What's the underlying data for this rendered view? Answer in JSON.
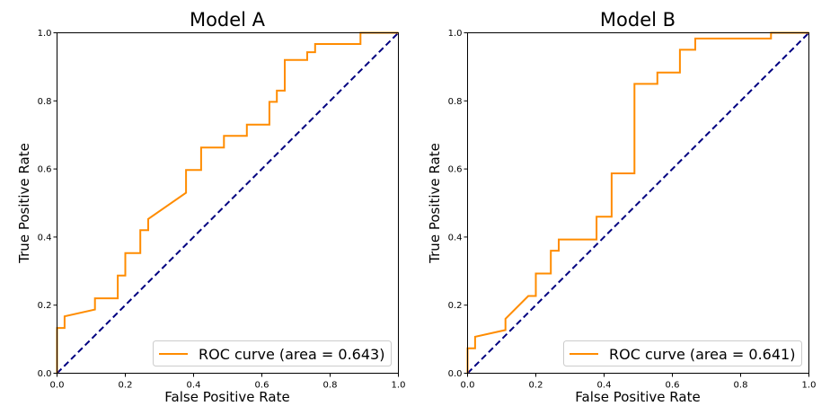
{
  "figure": {
    "background": "#ffffff"
  },
  "chart_data": [
    {
      "type": "line",
      "title": "Model A",
      "xlabel": "False Positive Rate",
      "ylabel": "True Positive Rate",
      "xlim": [
        0.0,
        1.0
      ],
      "ylim": [
        0.0,
        1.0
      ],
      "xticks": [
        "0.0",
        "0.2",
        "0.4",
        "0.6",
        "0.8",
        "1.0"
      ],
      "yticks": [
        "0.0",
        "0.2",
        "0.4",
        "0.6",
        "0.8",
        "1.0"
      ],
      "grid": false,
      "legend_position": "lower right",
      "series": [
        {
          "name": "ROC curve (area = 0.643)",
          "color": "#ff8c00",
          "style": "solid",
          "x": [
            0.0,
            0.0,
            0.022,
            0.022,
            0.111,
            0.111,
            0.178,
            0.178,
            0.2,
            0.2,
            0.244,
            0.244,
            0.267,
            0.267,
            0.378,
            0.378,
            0.422,
            0.422,
            0.489,
            0.489,
            0.556,
            0.556,
            0.622,
            0.622,
            0.644,
            0.644,
            0.667,
            0.667,
            0.733,
            0.733,
            0.756,
            0.756,
            0.889,
            0.889,
            1.0
          ],
          "y": [
            0.0,
            0.133,
            0.133,
            0.167,
            0.187,
            0.22,
            0.22,
            0.287,
            0.287,
            0.353,
            0.353,
            0.42,
            0.42,
            0.453,
            0.53,
            0.597,
            0.597,
            0.663,
            0.663,
            0.697,
            0.697,
            0.73,
            0.73,
            0.797,
            0.797,
            0.83,
            0.83,
            0.92,
            0.92,
            0.943,
            0.943,
            0.967,
            0.967,
            1.0,
            1.0
          ]
        },
        {
          "name": "",
          "color": "#000080",
          "style": "dashed",
          "x": [
            0.0,
            1.0
          ],
          "y": [
            0.0,
            1.0
          ]
        }
      ]
    },
    {
      "type": "line",
      "title": "Model B",
      "xlabel": "False Positive Rate",
      "ylabel": "True Positive Rate",
      "xlim": [
        0.0,
        1.0
      ],
      "ylim": [
        0.0,
        1.0
      ],
      "xticks": [
        "0.0",
        "0.2",
        "0.4",
        "0.6",
        "0.8",
        "1.0"
      ],
      "yticks": [
        "0.0",
        "0.2",
        "0.4",
        "0.6",
        "0.8",
        "1.0"
      ],
      "grid": false,
      "legend_position": "lower right",
      "series": [
        {
          "name": "ROC curve (area = 0.641)",
          "color": "#ff8c00",
          "style": "solid",
          "x": [
            0.0,
            0.0,
            0.022,
            0.022,
            0.111,
            0.111,
            0.178,
            0.2,
            0.2,
            0.244,
            0.244,
            0.267,
            0.267,
            0.378,
            0.378,
            0.422,
            0.422,
            0.489,
            0.489,
            0.556,
            0.556,
            0.622,
            0.622,
            0.667,
            0.667,
            0.889,
            0.889,
            1.0
          ],
          "y": [
            0.0,
            0.073,
            0.073,
            0.107,
            0.127,
            0.16,
            0.227,
            0.227,
            0.293,
            0.293,
            0.36,
            0.36,
            0.393,
            0.393,
            0.46,
            0.46,
            0.587,
            0.587,
            0.85,
            0.85,
            0.883,
            0.883,
            0.95,
            0.95,
            0.983,
            0.983,
            1.0,
            1.0
          ]
        },
        {
          "name": "",
          "color": "#000080",
          "style": "dashed",
          "x": [
            0.0,
            1.0
          ],
          "y": [
            0.0,
            1.0
          ]
        }
      ]
    }
  ]
}
